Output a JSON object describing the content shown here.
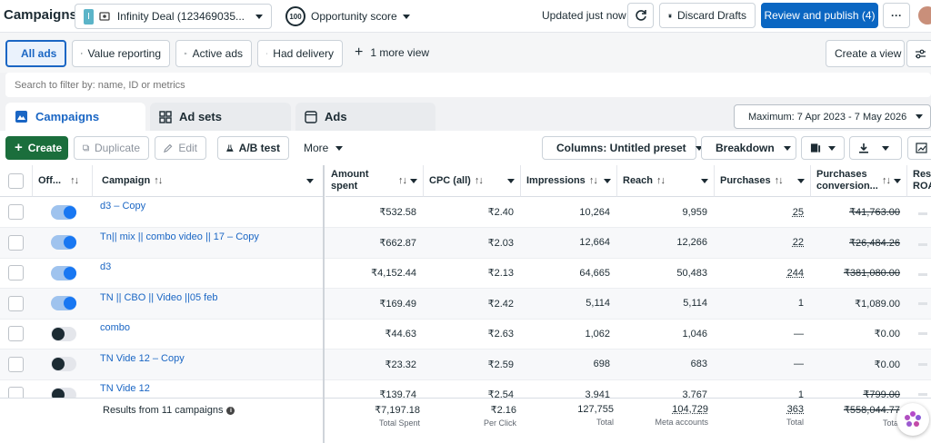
{
  "topbar": {
    "title": "Campaigns",
    "account_badge": "I",
    "account_name": "Infinity Deal (123469035...",
    "score_badge": "100",
    "score_label": "Opportunity score",
    "updated_text": "Updated just now",
    "discard_label": "Discard Drafts",
    "review_label": "Review and publish (4)",
    "more_label": "···"
  },
  "views": {
    "all_ads": "All ads",
    "value_reporting": "Value reporting",
    "active_ads": "Active ads",
    "had_delivery": "Had delivery",
    "more_view": "1 more view",
    "create_view": "Create a view"
  },
  "search": {
    "placeholder": "Search to filter by: name, ID or metrics"
  },
  "tabs": {
    "campaigns": "Campaigns",
    "ad_sets": "Ad sets",
    "ads": "Ads"
  },
  "date_range": "Maximum: 7 Apr 2023 - 7 May 2026",
  "toolbar": {
    "create": "Create",
    "duplicate": "Duplicate",
    "edit": "Edit",
    "ab_test": "A/B test",
    "more": "More",
    "columns": "Columns: Untitled preset",
    "breakdown": "Breakdown"
  },
  "columns": {
    "off_on": "Off...",
    "campaign": "Campaign",
    "amount_spent": "Amount spent",
    "cpc": "CPC (all)",
    "impressions": "Impressions",
    "reach": "Reach",
    "purchases": "Purchases",
    "purchases_conv": "Purchases conversion...",
    "results_roas": "Resu ROA"
  },
  "rows": [
    {
      "on": true,
      "name": "d3 – Copy",
      "spent": "₹532.58",
      "cpc": "₹2.40",
      "impressions": "10,264",
      "reach": "9,959",
      "purchases": "25",
      "conv": "₹41,763.00",
      "pstyle": "dotted",
      "cstyle": "strike"
    },
    {
      "on": true,
      "name": "Tn|| mix || combo video || 17 – Copy",
      "spent": "₹662.87",
      "cpc": "₹2.03",
      "impressions": "12,664",
      "reach": "12,266",
      "purchases": "22",
      "conv": "₹26,484.26",
      "pstyle": "dotted",
      "cstyle": "strike"
    },
    {
      "on": true,
      "name": "d3",
      "spent": "₹4,152.44",
      "cpc": "₹2.13",
      "impressions": "64,665",
      "reach": "50,483",
      "purchases": "244",
      "conv": "₹381,080.00",
      "pstyle": "dotted",
      "cstyle": "strike"
    },
    {
      "on": true,
      "name": "TN || CBO || Video ||05 feb",
      "spent": "₹169.49",
      "cpc": "₹2.42",
      "impressions": "5,114",
      "reach": "5,114",
      "purchases": "1",
      "conv": "₹1,089.00",
      "pstyle": "",
      "cstyle": ""
    },
    {
      "on": false,
      "name": "combo",
      "spent": "₹44.63",
      "cpc": "₹2.63",
      "impressions": "1,062",
      "reach": "1,046",
      "purchases": "—",
      "conv": "₹0.00",
      "pstyle": "",
      "cstyle": ""
    },
    {
      "on": false,
      "name": "TN Vide 12 – Copy",
      "spent": "₹23.32",
      "cpc": "₹2.59",
      "impressions": "698",
      "reach": "683",
      "purchases": "—",
      "conv": "₹0.00",
      "pstyle": "",
      "cstyle": ""
    },
    {
      "on": false,
      "name": "TN Vide 12",
      "spent": "₹139.74",
      "cpc": "₹2.54",
      "impressions": "3,941",
      "reach": "3,767",
      "purchases": "1",
      "conv": "₹799.00",
      "pstyle": "dotted",
      "cstyle": "strike"
    }
  ],
  "footer": {
    "results": "Results from 11 campaigns",
    "spent": "₹7,197.18",
    "spent_sub": "Total Spent",
    "cpc": "₹2.16",
    "cpc_sub": "Per Click",
    "impressions": "127,755",
    "impressions_sub": "Total",
    "reach": "104,729",
    "reach_sub": "Meta accounts",
    "purchases": "363",
    "purchases_sub": "Total",
    "conv": "₹558,044.77",
    "conv_sub": "Total"
  },
  "colors": {
    "accent": "#0a66c2",
    "create_green": "#1b6e3c",
    "toggle_on": "#1877f2"
  }
}
